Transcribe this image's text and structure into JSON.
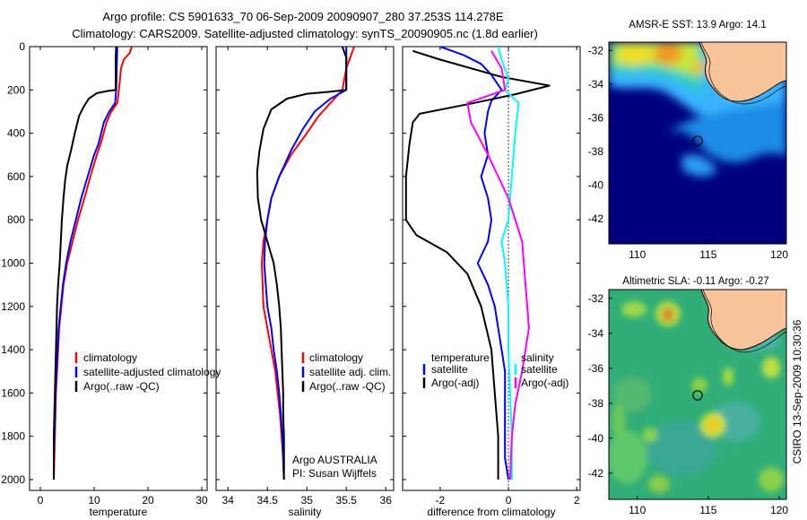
{
  "title": {
    "line1": "Argo profile: CS 5901633_70 06-Sep-2009 20090907_280 37.253S 114.278E",
    "line2": "Climatology: CARS2009. Satellite-adjusted climatology: synTS_20090905.nc (1.8d earlier)"
  },
  "credit": "CSIRO 13-Sep-2009 10:30:36",
  "annotation": {
    "line1": "Argo AUSTRALIA",
    "line2": "PI: Susan Wijffels"
  },
  "colors": {
    "red": "#ff0000",
    "blue": "#0000ff",
    "black": "#000000",
    "cyan": "#00ffff",
    "magenta": "#ff00ff",
    "land": "#f8c49a"
  },
  "chart_data": [
    {
      "id": "temperature",
      "type": "line",
      "xlabel": "temperature",
      "ylabel": "",
      "xlim": [
        -2,
        31
      ],
      "ylim": [
        2050,
        0
      ],
      "xticks": [
        0,
        10,
        20,
        30
      ],
      "yticks": [
        0,
        200,
        400,
        600,
        800,
        1000,
        1200,
        1400,
        1600,
        1800,
        2000
      ],
      "legend": [
        "climatology",
        "satellite-adjusted climatology",
        "Argo(..raw -QC)"
      ],
      "series": [
        {
          "name": "climatology",
          "color": "red",
          "points": [
            [
              17,
              0
            ],
            [
              16.6,
              30
            ],
            [
              15.5,
              60
            ],
            [
              15.0,
              100
            ],
            [
              14.6,
              200
            ],
            [
              14.3,
              260
            ],
            [
              13.2,
              300
            ],
            [
              12.3,
              350
            ],
            [
              11.2,
              450
            ],
            [
              10.5,
              500
            ],
            [
              9.3,
              600
            ],
            [
              8.2,
              700
            ],
            [
              7.0,
              800
            ],
            [
              6.0,
              900
            ],
            [
              5.0,
              1000
            ],
            [
              4.3,
              1100
            ],
            [
              3.9,
              1200
            ],
            [
              3.5,
              1300
            ],
            [
              3.3,
              1400
            ],
            [
              3.1,
              1500
            ],
            [
              2.9,
              1600
            ],
            [
              2.8,
              1700
            ],
            [
              2.7,
              1800
            ],
            [
              2.6,
              1900
            ],
            [
              2.5,
              2000
            ]
          ]
        },
        {
          "name": "satellite-adjusted climatology",
          "color": "blue",
          "points": [
            [
              14.3,
              0
            ],
            [
              14.2,
              100
            ],
            [
              14.1,
              200
            ],
            [
              13.9,
              260
            ],
            [
              12.8,
              300
            ],
            [
              11.8,
              350
            ],
            [
              10.8,
              450
            ],
            [
              10.0,
              500
            ],
            [
              8.8,
              600
            ],
            [
              7.6,
              700
            ],
            [
              6.6,
              800
            ],
            [
              5.6,
              900
            ],
            [
              4.8,
              1000
            ],
            [
              4.2,
              1100
            ],
            [
              3.8,
              1200
            ],
            [
              3.4,
              1300
            ],
            [
              3.2,
              1400
            ],
            [
              3.0,
              1500
            ],
            [
              2.8,
              1600
            ],
            [
              2.7,
              1700
            ],
            [
              2.6,
              1800
            ],
            [
              2.5,
              1900
            ],
            [
              2.5,
              2000
            ]
          ]
        },
        {
          "name": "Argo(..raw -QC)",
          "color": "black",
          "points": [
            [
              14.1,
              0
            ],
            [
              14.0,
              50
            ],
            [
              14.0,
              100
            ],
            [
              14.0,
              150
            ],
            [
              14.0,
              200
            ],
            [
              12.5,
              205
            ],
            [
              10.5,
              215
            ],
            [
              9.0,
              240
            ],
            [
              8.0,
              280
            ],
            [
              7.2,
              320
            ],
            [
              6.4,
              400
            ],
            [
              5.7,
              480
            ],
            [
              5.0,
              550
            ],
            [
              4.6,
              620
            ],
            [
              4.3,
              700
            ],
            [
              4.0,
              800
            ],
            [
              3.8,
              900
            ],
            [
              3.6,
              1000
            ],
            [
              3.3,
              1100
            ],
            [
              3.1,
              1200
            ],
            [
              3.0,
              1300
            ],
            [
              2.9,
              1400
            ],
            [
              2.8,
              1500
            ],
            [
              2.7,
              1600
            ],
            [
              2.6,
              1700
            ],
            [
              2.5,
              1800
            ],
            [
              2.5,
              1900
            ],
            [
              2.5,
              2000
            ]
          ]
        }
      ]
    },
    {
      "id": "salinity",
      "type": "line",
      "xlabel": "salinity",
      "ylabel": "",
      "xlim": [
        33.85,
        36.1
      ],
      "ylim": [
        2050,
        0
      ],
      "xticks": [
        34,
        34.5,
        35,
        35.5,
        36
      ],
      "yticks": [
        0,
        200,
        400,
        600,
        800,
        1000,
        1200,
        1400,
        1600,
        1800,
        2000
      ],
      "legend": [
        "climatology",
        "satellite adj. clim.",
        "Argo(..raw -QC)"
      ],
      "series": [
        {
          "name": "climatology",
          "color": "red",
          "points": [
            [
              35.6,
              0
            ],
            [
              35.55,
              50
            ],
            [
              35.5,
              100
            ],
            [
              35.45,
              200
            ],
            [
              35.3,
              260
            ],
            [
              35.15,
              320
            ],
            [
              35.0,
              400
            ],
            [
              34.8,
              500
            ],
            [
              34.65,
              600
            ],
            [
              34.55,
              700
            ],
            [
              34.5,
              800
            ],
            [
              34.45,
              900
            ],
            [
              34.43,
              1000
            ],
            [
              34.44,
              1100
            ],
            [
              34.45,
              1200
            ],
            [
              34.5,
              1300
            ],
            [
              34.55,
              1400
            ],
            [
              34.6,
              1500
            ],
            [
              34.63,
              1600
            ],
            [
              34.66,
              1700
            ],
            [
              34.68,
              1800
            ],
            [
              34.7,
              1900
            ],
            [
              34.71,
              2000
            ]
          ]
        },
        {
          "name": "satellite adj. clim.",
          "color": "blue",
          "points": [
            [
              35.5,
              0
            ],
            [
              35.5,
              100
            ],
            [
              35.5,
              200
            ],
            [
              35.3,
              240
            ],
            [
              35.1,
              300
            ],
            [
              34.95,
              380
            ],
            [
              34.8,
              480
            ],
            [
              34.65,
              600
            ],
            [
              34.55,
              700
            ],
            [
              34.5,
              800
            ],
            [
              34.47,
              900
            ],
            [
              34.46,
              1000
            ],
            [
              34.48,
              1100
            ],
            [
              34.5,
              1200
            ],
            [
              34.55,
              1300
            ],
            [
              34.58,
              1400
            ],
            [
              34.62,
              1500
            ],
            [
              34.65,
              1600
            ],
            [
              34.67,
              1700
            ],
            [
              34.69,
              1800
            ],
            [
              34.7,
              1900
            ],
            [
              34.71,
              2000
            ]
          ]
        },
        {
          "name": "Argo(..raw -QC)",
          "color": "black",
          "points": [
            [
              35.45,
              0
            ],
            [
              35.5,
              50
            ],
            [
              35.5,
              100
            ],
            [
              35.5,
              200
            ],
            [
              35.3,
              208
            ],
            [
              35.0,
              218
            ],
            [
              34.75,
              240
            ],
            [
              34.55,
              290
            ],
            [
              34.45,
              380
            ],
            [
              34.4,
              480
            ],
            [
              34.37,
              580
            ],
            [
              34.38,
              700
            ],
            [
              34.42,
              800
            ],
            [
              34.5,
              900
            ],
            [
              34.58,
              1000
            ],
            [
              34.62,
              1100
            ],
            [
              34.65,
              1200
            ],
            [
              34.67,
              1300
            ],
            [
              34.68,
              1400
            ],
            [
              34.69,
              1500
            ],
            [
              34.7,
              1600
            ],
            [
              34.7,
              1700
            ],
            [
              34.71,
              1800
            ],
            [
              34.71,
              1900
            ],
            [
              34.71,
              2000
            ]
          ]
        }
      ]
    },
    {
      "id": "difference",
      "type": "line",
      "xlabel": "difference from climatology",
      "ylabel": "",
      "xlim": [
        -3.1,
        2.1
      ],
      "ylim": [
        2050,
        0
      ],
      "xticks": [
        -2,
        0,
        2
      ],
      "yticks": [
        0,
        200,
        400,
        600,
        800,
        1000,
        1200,
        1400,
        1600,
        1800,
        2000
      ],
      "legend_left_title": "temperature",
      "legend_right_title": "salinity",
      "legend_left": [
        "satellite",
        "Argo(-adj)"
      ],
      "legend_right": [
        "satellite",
        "Argo(-adj)"
      ],
      "series": [
        {
          "name": "temperature satellite",
          "color": "blue",
          "points": [
            [
              -2.0,
              0
            ],
            [
              -1.3,
              40
            ],
            [
              -0.8,
              80
            ],
            [
              -0.5,
              130
            ],
            [
              -0.2,
              200
            ],
            [
              -0.5,
              250
            ],
            [
              -0.6,
              300
            ],
            [
              -0.7,
              400
            ],
            [
              -0.6,
              500
            ],
            [
              -0.8,
              600
            ],
            [
              -0.6,
              700
            ],
            [
              -0.5,
              800
            ],
            [
              -0.6,
              900
            ],
            [
              -0.9,
              1000
            ],
            [
              -0.6,
              1100
            ],
            [
              -0.4,
              1200
            ],
            [
              -0.3,
              1300
            ],
            [
              -0.2,
              1400
            ],
            [
              -0.1,
              1500
            ],
            [
              -0.1,
              1700
            ],
            [
              -0.1,
              1900
            ],
            [
              0.0,
              2000
            ]
          ]
        },
        {
          "name": "temperature Argo(-adj)",
          "color": "black",
          "points": [
            [
              -2.8,
              20
            ],
            [
              -2.0,
              60
            ],
            [
              -0.2,
              140
            ],
            [
              1.2,
              180
            ],
            [
              0.2,
              220
            ],
            [
              -1.0,
              260
            ],
            [
              -2.6,
              310
            ],
            [
              -2.8,
              350
            ],
            [
              -2.9,
              450
            ],
            [
              -3.0,
              600
            ],
            [
              -3.0,
              800
            ],
            [
              -2.7,
              870
            ],
            [
              -1.8,
              950
            ],
            [
              -1.2,
              1050
            ],
            [
              -0.8,
              1200
            ],
            [
              -0.5,
              1400
            ],
            [
              -0.4,
              1600
            ],
            [
              -0.3,
              1800
            ],
            [
              -0.3,
              2000
            ]
          ]
        },
        {
          "name": "salinity satellite",
          "color": "cyan",
          "points": [
            [
              -0.3,
              0
            ],
            [
              -0.2,
              60
            ],
            [
              0.0,
              150
            ],
            [
              -0.1,
              200
            ],
            [
              0.3,
              260
            ],
            [
              0.2,
              400
            ],
            [
              0.1,
              600
            ],
            [
              0.0,
              800
            ],
            [
              -0.2,
              900
            ],
            [
              -0.1,
              1000
            ],
            [
              0.0,
              1200
            ],
            [
              0.0,
              1400
            ],
            [
              0.05,
              1600
            ],
            [
              0.1,
              1800
            ],
            [
              0.1,
              2000
            ]
          ]
        },
        {
          "name": "salinity Argo(-adj)",
          "color": "magenta",
          "points": [
            [
              -0.5,
              20
            ],
            [
              -0.2,
              100
            ],
            [
              -0.1,
              200
            ],
            [
              -1.2,
              260
            ],
            [
              -1.1,
              350
            ],
            [
              -0.6,
              500
            ],
            [
              0.0,
              700
            ],
            [
              0.4,
              900
            ],
            [
              0.5,
              1100
            ],
            [
              0.6,
              1300
            ],
            [
              0.4,
              1500
            ],
            [
              0.2,
              1650
            ],
            [
              0.1,
              1800
            ],
            [
              0.05,
              2000
            ]
          ]
        }
      ]
    }
  ],
  "maps": [
    {
      "id": "sst",
      "title": "AMSR-E SST: 13.9 Argo: 14.1",
      "xlim": [
        108,
        120.5
      ],
      "ylim": [
        -43.5,
        -31.5
      ],
      "xticks": [
        110,
        115,
        120
      ],
      "yticks": [
        -32,
        -34,
        -36,
        -38,
        -40,
        -42
      ],
      "argo_position": {
        "lon": 114.278,
        "lat": -37.253
      }
    },
    {
      "id": "sla",
      "title": "Altimetric SLA: -0.11 Argo: -0.27",
      "xlim": [
        108,
        120.5
      ],
      "ylim": [
        -43.5,
        -31.5
      ],
      "xticks": [
        110,
        115,
        120
      ],
      "yticks": [
        -32,
        -34,
        -36,
        -38,
        -40,
        -42
      ],
      "argo_position": {
        "lon": 114.278,
        "lat": -37.253
      }
    }
  ]
}
